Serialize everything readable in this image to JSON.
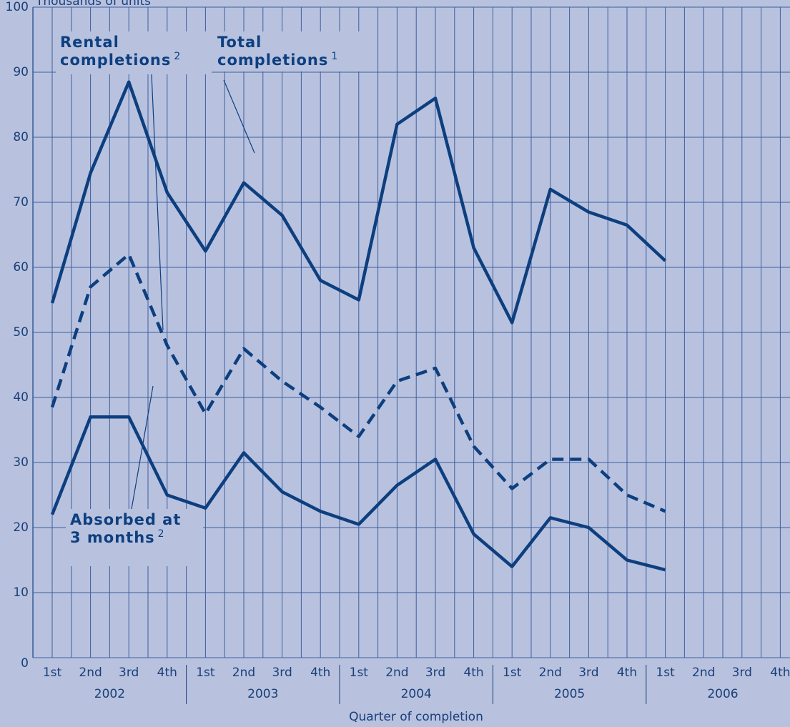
{
  "chart_data": {
    "type": "line",
    "y_label": "Thousands of units",
    "x_label": "Quarter of completion",
    "categories": [
      "1st",
      "2nd",
      "3rd",
      "4th",
      "1st",
      "2nd",
      "3rd",
      "4th",
      "1st",
      "2nd",
      "3rd",
      "4th",
      "1st",
      "2nd",
      "3rd",
      "4th",
      "1st",
      "2nd",
      "3rd",
      "4th"
    ],
    "years": [
      "2002",
      "2003",
      "2004",
      "2005",
      "2006"
    ],
    "ylim": [
      0,
      100
    ],
    "yticks": [
      0,
      10,
      20,
      30,
      40,
      50,
      60,
      70,
      80,
      90,
      100
    ],
    "grid": true,
    "series": [
      {
        "name": "Total completions",
        "color": "#0d3f7f",
        "style": "solid",
        "values": [
          54.5,
          74.5,
          88.5,
          71.5,
          62.5,
          73,
          68,
          58,
          55,
          82,
          86,
          63,
          51.5,
          72,
          68.5,
          66.5,
          61,
          null,
          null,
          null
        ]
      },
      {
        "name": "Rental completions",
        "color": "#0d3f7f",
        "style": "dashed",
        "values": [
          38.5,
          57,
          62,
          48,
          37.5,
          47.5,
          42.5,
          38.5,
          34,
          42.5,
          44.5,
          32.5,
          26,
          30.5,
          30.5,
          25,
          22.5,
          null,
          null,
          null
        ]
      },
      {
        "name": "Absorbed at 3 months",
        "color": "#0d3f7f",
        "style": "solid",
        "values": [
          22,
          37,
          37,
          25,
          23,
          31.5,
          25.5,
          22.5,
          20.5,
          26.5,
          30.5,
          19,
          14,
          21.5,
          20,
          15,
          13.5,
          null,
          null,
          null
        ]
      }
    ],
    "annotations": [
      {
        "lines": [
          "Rental",
          "completions"
        ],
        "note": "2"
      },
      {
        "lines": [
          "Total",
          "completions"
        ],
        "note": "1"
      },
      {
        "lines": [
          "Absorbed at",
          "3 months"
        ],
        "note": "2"
      }
    ]
  }
}
